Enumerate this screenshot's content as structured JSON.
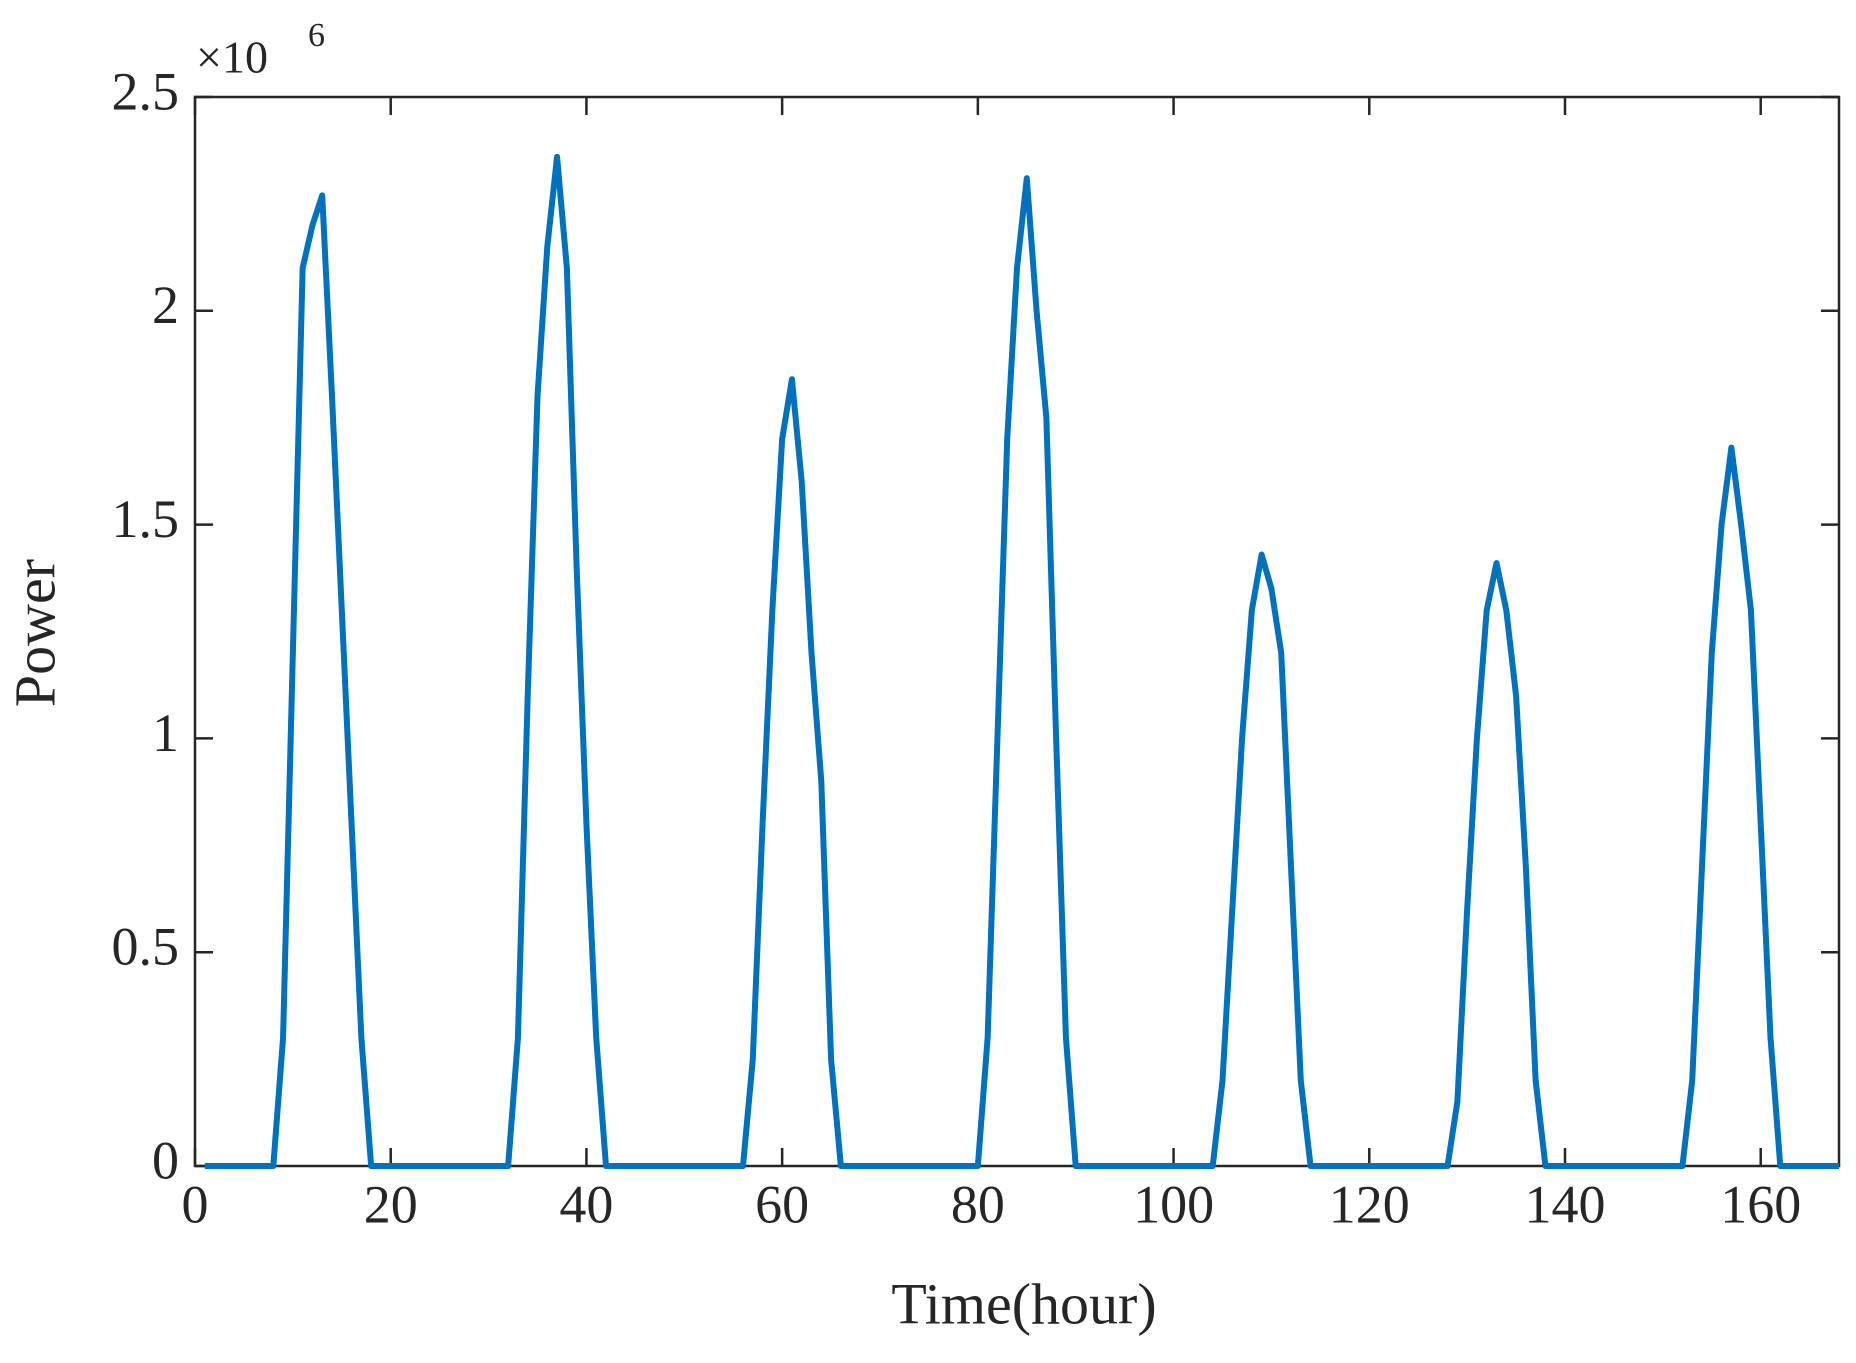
{
  "chart_data": {
    "type": "line",
    "xlabel": "Time(hour)",
    "ylabel": "Power",
    "y_multiplier": {
      "base": "×10",
      "exponent": "6"
    },
    "color": "#0072bd",
    "xlim": [
      0,
      168
    ],
    "ylim": [
      0,
      2.5
    ],
    "xticks": [
      0,
      20,
      40,
      60,
      80,
      100,
      120,
      140,
      160
    ],
    "yticks": [
      0,
      0.5,
      1,
      1.5,
      2,
      2.5
    ],
    "x": [
      1,
      2,
      3,
      4,
      5,
      6,
      7,
      8,
      9,
      10,
      11,
      12,
      13,
      14,
      15,
      16,
      17,
      18,
      19,
      20,
      21,
      22,
      23,
      24,
      25,
      26,
      27,
      28,
      29,
      30,
      31,
      32,
      33,
      34,
      35,
      36,
      37,
      38,
      39,
      40,
      41,
      42,
      43,
      44,
      45,
      46,
      47,
      48,
      49,
      50,
      51,
      52,
      53,
      54,
      55,
      56,
      57,
      58,
      59,
      60,
      61,
      62,
      63,
      64,
      65,
      66,
      67,
      68,
      69,
      70,
      71,
      72,
      73,
      74,
      75,
      76,
      77,
      78,
      79,
      80,
      81,
      82,
      83,
      84,
      85,
      86,
      87,
      88,
      89,
      90,
      91,
      92,
      93,
      94,
      95,
      96,
      97,
      98,
      99,
      100,
      101,
      102,
      103,
      104,
      105,
      106,
      107,
      108,
      109,
      110,
      111,
      112,
      113,
      114,
      115,
      116,
      117,
      118,
      119,
      120,
      121,
      122,
      123,
      124,
      125,
      126,
      127,
      128,
      129,
      130,
      131,
      132,
      133,
      134,
      135,
      136,
      137,
      138,
      139,
      140,
      141,
      142,
      143,
      144,
      145,
      146,
      147,
      148,
      149,
      150,
      151,
      152,
      153,
      154,
      155,
      156,
      157,
      158,
      159,
      160,
      161,
      162,
      163,
      164,
      165,
      166,
      167,
      168
    ],
    "values": [
      0,
      0,
      0,
      0,
      0,
      0,
      0,
      0,
      0.3,
      1.2,
      2.1,
      2.2,
      2.27,
      1.8,
      1.3,
      0.8,
      0.3,
      0,
      0,
      0,
      0,
      0,
      0,
      0,
      0,
      0,
      0,
      0,
      0,
      0,
      0,
      0,
      0.3,
      1.1,
      1.8,
      2.15,
      2.36,
      2.1,
      1.4,
      0.8,
      0.3,
      0,
      0,
      0,
      0,
      0,
      0,
      0,
      0,
      0,
      0,
      0,
      0,
      0,
      0,
      0,
      0.25,
      0.8,
      1.3,
      1.7,
      1.84,
      1.6,
      1.2,
      0.9,
      0.25,
      0,
      0,
      0,
      0,
      0,
      0,
      0,
      0,
      0,
      0,
      0,
      0,
      0,
      0,
      0,
      0.3,
      1.0,
      1.7,
      2.1,
      2.31,
      2.0,
      1.75,
      1.0,
      0.3,
      0,
      0,
      0,
      0,
      0,
      0,
      0,
      0,
      0,
      0,
      0,
      0,
      0,
      0,
      0,
      0.2,
      0.6,
      1.0,
      1.3,
      1.43,
      1.35,
      1.2,
      0.7,
      0.2,
      0,
      0,
      0,
      0,
      0,
      0,
      0,
      0,
      0,
      0,
      0,
      0,
      0,
      0,
      0,
      0.15,
      0.6,
      1.0,
      1.3,
      1.41,
      1.3,
      1.1,
      0.7,
      0.2,
      0,
      0,
      0,
      0,
      0,
      0,
      0,
      0,
      0,
      0,
      0,
      0,
      0,
      0,
      0,
      0.2,
      0.7,
      1.2,
      1.5,
      1.68,
      1.5,
      1.3,
      0.8,
      0.3,
      0,
      0,
      0,
      0,
      0,
      0,
      0
    ]
  }
}
